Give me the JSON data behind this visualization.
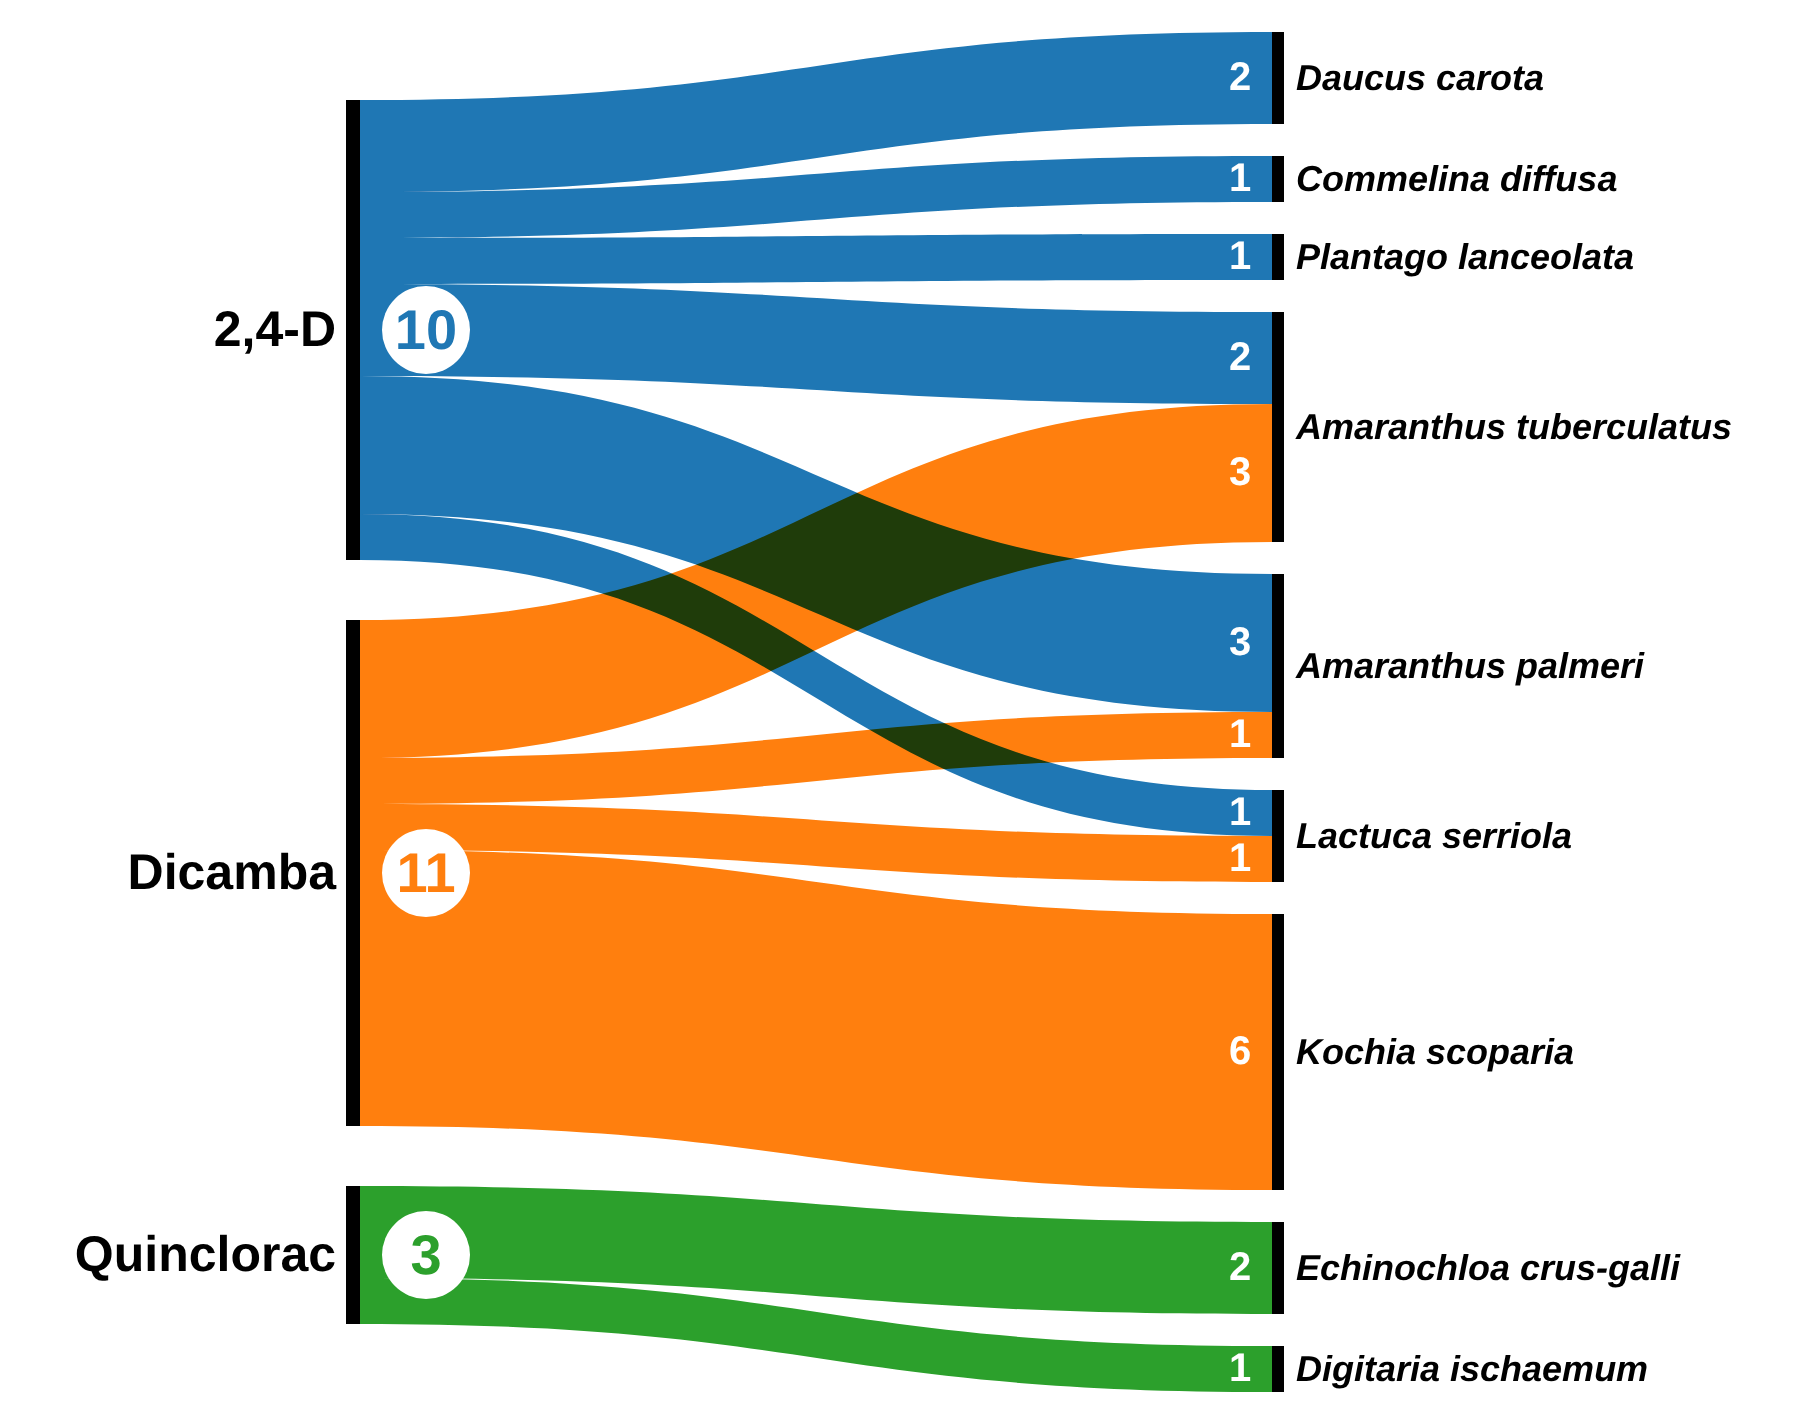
{
  "chart_data": {
    "type": "other",
    "categories": [
      "Daucus carota",
      "Commelina diffusa",
      "Plantago lanceolata",
      "Amaranthus tuberculatus",
      "Amaranthus palmeri",
      "Lactuca serriola",
      "Kochia scoparia",
      "Echinochloa crus-galli",
      "Digitaria ischaemum"
    ],
    "series": [
      {
        "name": "2,4-D",
        "color": "#1f77b4",
        "values": [
          2,
          1,
          1,
          2,
          3,
          1,
          null,
          null,
          null
        ]
      },
      {
        "name": "Dicamba",
        "color": "#ff7f0e",
        "values": [
          null,
          null,
          null,
          3,
          1,
          1,
          6,
          null,
          null
        ]
      },
      {
        "name": "Quinclorac",
        "color": "#2ca02c",
        "values": [
          null,
          null,
          null,
          null,
          null,
          null,
          null,
          2,
          1
        ]
      }
    ],
    "totals": [
      "10",
      "11",
      "3"
    ],
    "data_labels": true
  }
}
